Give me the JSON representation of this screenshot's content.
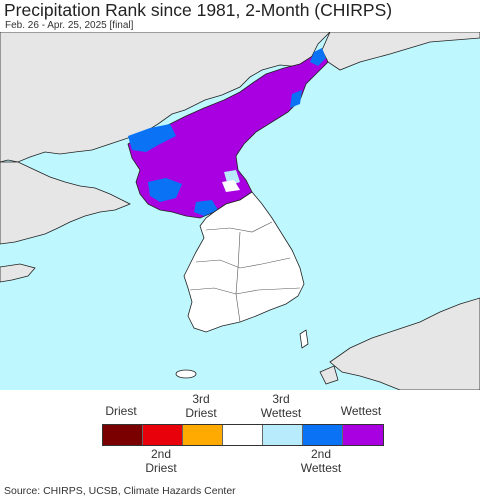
{
  "header": {
    "title": "Precipitation Rank since 1981, 2-Month (CHIRPS)",
    "subtitle": "Feb. 26 - Apr. 25, 2025 [final]"
  },
  "map": {
    "ocean_color": "#bff7ff",
    "land_color": "#e6e6e6",
    "south_korea_color": "#ffffff"
  },
  "legend": {
    "top_labels": [
      "Driest",
      "3rd\nDriest",
      "3rd\nWettest",
      "Wettest"
    ],
    "bottom_labels": [
      "2nd\nDriest",
      "2nd\nWettest"
    ],
    "colors": [
      "#7a0000",
      "#e8000b",
      "#ffaa00",
      "#ffffff",
      "#b8ebfb",
      "#0a73f5",
      "#a800e0"
    ]
  },
  "footer": {
    "source": "Source: CHIRPS, UCSB, Climate Hazards Center"
  }
}
